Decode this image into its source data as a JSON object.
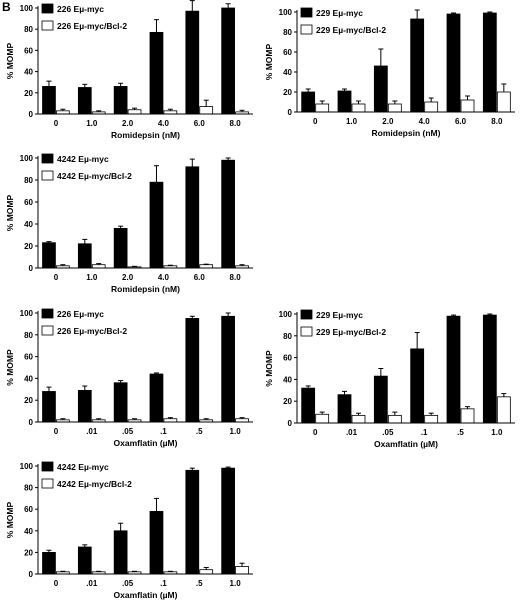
{
  "panel_label": "B",
  "chart_data": [
    {
      "type": "bar",
      "categories": [
        "0",
        "1.0",
        "2.0",
        "4.0",
        "6.0",
        "8.0"
      ],
      "series": [
        {
          "name": "226 Eµ-myc",
          "values": [
            26,
            25,
            26,
            77,
            97,
            100
          ],
          "errors": [
            5,
            3,
            3,
            12,
            10,
            4
          ],
          "color": "#000000"
        },
        {
          "name": "226 Eµ-myc/Bcl-2",
          "values": [
            3,
            2,
            4,
            3,
            7,
            2
          ],
          "errors": [
            1.5,
            1,
            1.5,
            1.5,
            6,
            1.5
          ],
          "color": "#ffffff"
        }
      ],
      "xlabel": "Romidepsin (nM)",
      "ylabel": "% MOMP",
      "ylim": [
        0,
        100
      ],
      "yticks": [
        0,
        20,
        40,
        60,
        80,
        100
      ],
      "legend": "top-left"
    },
    {
      "type": "bar",
      "categories": [
        "0",
        "1.0",
        "2.0",
        "4.0",
        "6.0",
        "8.0"
      ],
      "series": [
        {
          "name": "229 Eµ-myc",
          "values": [
            20,
            21,
            46,
            93,
            98,
            99
          ],
          "errors": [
            3,
            2,
            17,
            9,
            1,
            1
          ],
          "color": "#000000"
        },
        {
          "name": "229 Eµ-myc/Bcl-2",
          "values": [
            8,
            8,
            8,
            10,
            12,
            20
          ],
          "errors": [
            3,
            3,
            3,
            4,
            4,
            8
          ],
          "color": "#ffffff"
        }
      ],
      "xlabel": "Romidepsin (nM)",
      "ylabel": "% MOMP",
      "ylim": [
        0,
        100
      ],
      "yticks": [
        0,
        20,
        40,
        60,
        80,
        100
      ],
      "legend": "top-left"
    },
    {
      "type": "bar",
      "categories": [
        "0",
        "1.0",
        "2.0",
        "4.0",
        "6.0",
        "8.0"
      ],
      "series": [
        {
          "name": "4242 Eµ-myc",
          "values": [
            23,
            22,
            36,
            78,
            92,
            98
          ],
          "errors": [
            1,
            4,
            2,
            15,
            7,
            2
          ],
          "color": "#000000"
        },
        {
          "name": "4242 Eµ-myc/Bcl-2",
          "values": [
            2,
            3,
            1,
            2,
            3,
            2
          ],
          "errors": [
            1,
            1,
            0.5,
            0.5,
            0.5,
            1
          ],
          "color": "#ffffff"
        }
      ],
      "xlabel": "Romidepsin (nM)",
      "ylabel": "% MOMP",
      "ylim": [
        0,
        100
      ],
      "yticks": [
        0,
        20,
        40,
        60,
        80,
        100
      ],
      "legend": "top-left"
    },
    {
      "type": "bar",
      "categories": [
        "0",
        ".01",
        ".05",
        ".1",
        ".5",
        "1.0"
      ],
      "series": [
        {
          "name": "226 Eµ-myc",
          "values": [
            28,
            29,
            36,
            44,
            95,
            97
          ],
          "errors": [
            4,
            4,
            2,
            1,
            2,
            3
          ],
          "color": "#000000"
        },
        {
          "name": "226 Eµ-myc/Bcl-2",
          "values": [
            2,
            2,
            2,
            3,
            2,
            3
          ],
          "errors": [
            1,
            1,
            1,
            1,
            1,
            1
          ],
          "color": "#ffffff"
        }
      ],
      "xlabel": "Oxamflatin (µM)",
      "ylabel": "% MOMP",
      "ylim": [
        0,
        100
      ],
      "yticks": [
        0,
        20,
        40,
        60,
        80,
        100
      ],
      "legend": "top-left"
    },
    {
      "type": "bar",
      "categories": [
        "0",
        ".01",
        ".05",
        ".1",
        ".5",
        "1.0"
      ],
      "series": [
        {
          "name": "229 Eµ-myc",
          "values": [
            32,
            26,
            43,
            68,
            98,
            99
          ],
          "errors": [
            2,
            3,
            7,
            15,
            1,
            1
          ],
          "color": "#000000"
        },
        {
          "name": "229 Eµ-myc/Bcl-2",
          "values": [
            8,
            7,
            7,
            7,
            13,
            24
          ],
          "errors": [
            2,
            2,
            3,
            2,
            2,
            3
          ],
          "color": "#ffffff"
        }
      ],
      "xlabel": "Oxamflatin (µM)",
      "ylabel": "% MOMP",
      "ylim": [
        0,
        100
      ],
      "yticks": [
        0,
        20,
        40,
        60,
        80,
        100
      ],
      "legend": "top-left"
    },
    {
      "type": "bar",
      "categories": [
        "0",
        ".01",
        ".05",
        ".1",
        ".5",
        "1.0"
      ],
      "series": [
        {
          "name": "4242 Eµ-myc",
          "values": [
            20,
            25,
            40,
            58,
            96,
            98
          ],
          "errors": [
            2,
            2,
            7,
            12,
            2,
            1
          ],
          "color": "#000000"
        },
        {
          "name": "4242 Eµ-myc/Bcl-2",
          "values": [
            2,
            2,
            2,
            2,
            4,
            7
          ],
          "errors": [
            0.5,
            0.5,
            0.5,
            0.5,
            2,
            3
          ],
          "color": "#ffffff"
        }
      ],
      "xlabel": "Oxamflatin (µM)",
      "ylabel": "% MOMP",
      "ylim": [
        0,
        100
      ],
      "yticks": [
        0,
        20,
        40,
        60,
        80,
        100
      ],
      "legend": "top-left"
    }
  ]
}
